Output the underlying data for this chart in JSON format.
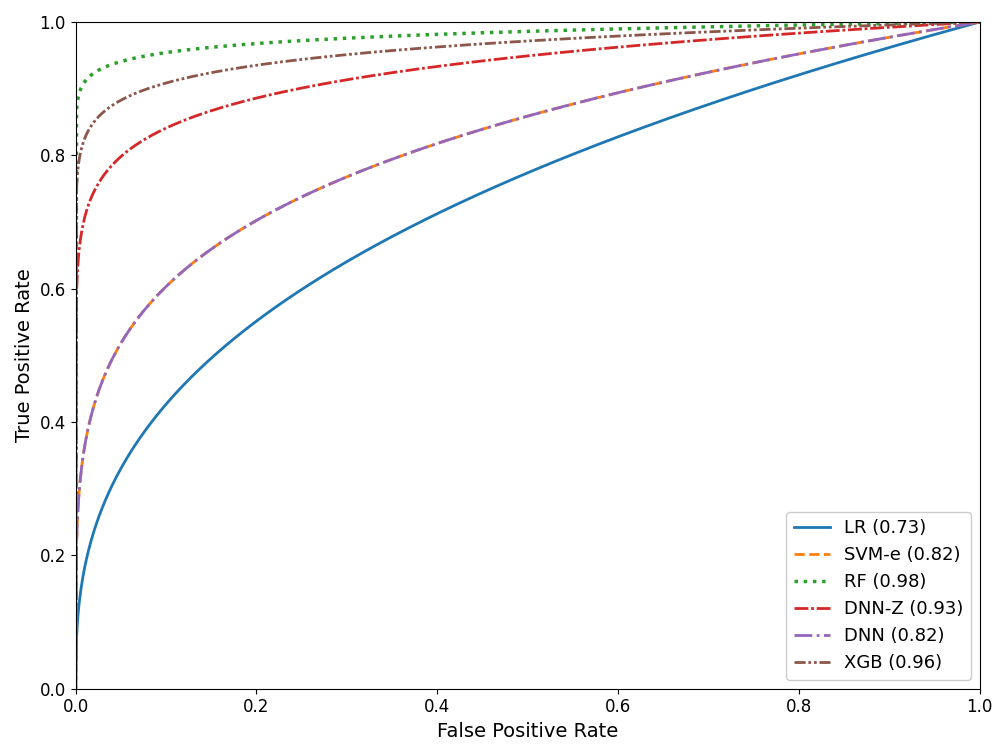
{
  "title": "",
  "xlabel": "False Positive Rate",
  "ylabel": "True Positive Rate",
  "xlim": [
    0.0,
    1.0
  ],
  "ylim": [
    0.0,
    1.0
  ],
  "curves": [
    {
      "name": "LR (0.73)",
      "color": "#1f77b4",
      "linestyle": "solid",
      "linewidth": 2.0,
      "auc": 0.73
    },
    {
      "name": "SVM-e (0.82)",
      "color": "#ff7f0e",
      "linestyle": "dashed",
      "linewidth": 2.0,
      "auc": 0.82
    },
    {
      "name": "RF (0.98)",
      "color": "#2ca02c",
      "linestyle": "dotted",
      "linewidth": 2.5,
      "auc": 0.98
    },
    {
      "name": "DNN-Z (0.93)",
      "color": "#d62728",
      "linestyle": "dashdot",
      "linewidth": 2.0,
      "auc": 0.93
    },
    {
      "name": "DNN (0.82)",
      "color": "#9467bd",
      "linestyle": "dashdot",
      "linewidth": 2.0,
      "auc": 0.82
    },
    {
      "name": "XGB (0.96)",
      "color": "#8c564b",
      "linestyle": "dashdot",
      "linewidth": 2.0,
      "auc": 0.96
    }
  ],
  "legend_loc": "lower right",
  "legend_fontsize": 13,
  "axis_fontsize": 14,
  "tick_fontsize": 12,
  "background_color": "#ffffff"
}
